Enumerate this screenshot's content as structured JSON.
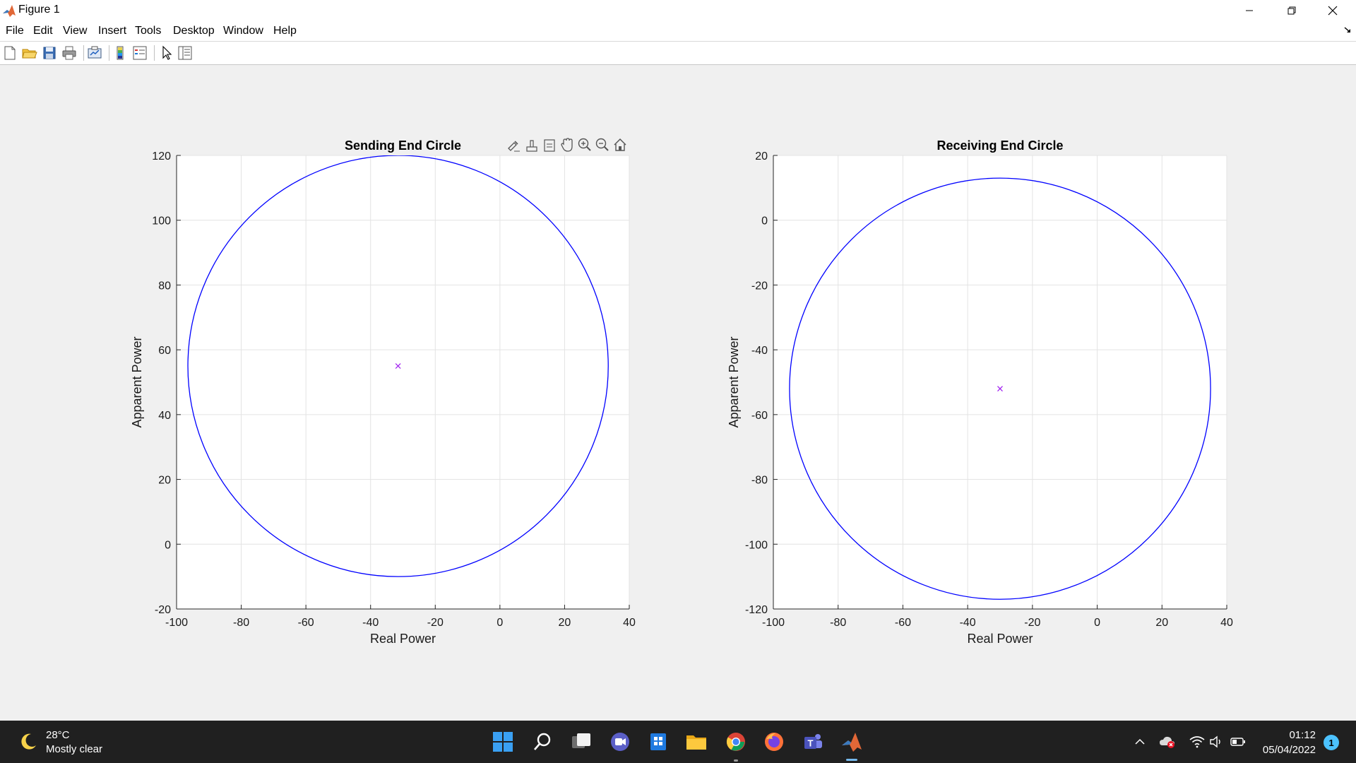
{
  "window": {
    "title": "Figure 1",
    "icon": "matlab-logo-icon",
    "controls": [
      "minimize-icon",
      "restore-icon",
      "close-icon"
    ]
  },
  "menu": {
    "items": [
      "File",
      "Edit",
      "View",
      "Insert",
      "Tools",
      "Desktop",
      "Window",
      "Help"
    ]
  },
  "toolbar": {
    "buttons": [
      "new-figure-icon",
      "open-file-icon",
      "save-icon",
      "print-icon",
      "link-plot-icon",
      "insert-colorbar-icon",
      "insert-legend-icon",
      "edit-plot-icon",
      "property-inspector-icon"
    ]
  },
  "axes_toolbar": {
    "buttons": [
      "brush-icon",
      "data-tips-icon",
      "restore-view-icon",
      "pan-icon",
      "zoom-in-icon",
      "zoom-out-icon",
      "home-icon"
    ]
  },
  "chart_data": [
    {
      "type": "line",
      "title": "Sending End Circle",
      "xlabel": "Real Power",
      "ylabel": "Apparent Power",
      "xlim": [
        -100,
        40
      ],
      "ylim": [
        -20,
        120
      ],
      "xticks": [
        -100,
        -80,
        -60,
        -40,
        -20,
        0,
        20,
        40
      ],
      "yticks": [
        -20,
        0,
        20,
        40,
        60,
        80,
        100,
        120
      ],
      "grid": true,
      "series": [
        {
          "kind": "circle",
          "center": [
            -31.5,
            55
          ],
          "radius": 65,
          "color": "#0000ff"
        },
        {
          "kind": "marker",
          "marker": "x",
          "x": -31.5,
          "y": 55,
          "color": "#a020f0"
        }
      ]
    },
    {
      "type": "line",
      "title": "Receiving End Circle",
      "xlabel": "Real Power",
      "ylabel": "Apparent Power",
      "xlim": [
        -100,
        40
      ],
      "ylim": [
        -120,
        20
      ],
      "xticks": [
        -100,
        -80,
        -60,
        -40,
        -20,
        0,
        20,
        40
      ],
      "yticks": [
        -120,
        -100,
        -80,
        -60,
        -40,
        -20,
        0,
        20
      ],
      "grid": true,
      "series": [
        {
          "kind": "circle",
          "center": [
            -30,
            -52
          ],
          "radius": 65,
          "color": "#0000ff"
        },
        {
          "kind": "marker",
          "marker": "x",
          "x": -30,
          "y": -52,
          "color": "#a020f0"
        }
      ]
    }
  ],
  "taskbar": {
    "weather": {
      "temperature": "28°C",
      "condition": "Mostly clear",
      "icon": "moon-icon"
    },
    "apps": [
      "windows-start-icon",
      "search-icon",
      "task-view-icon",
      "teams-chat-icon",
      "microsoft-store-icon",
      "file-explorer-icon",
      "chrome-icon",
      "firefox-icon",
      "teams-icon",
      "matlab-icon"
    ],
    "tray": [
      "chevron-up-icon",
      "onedrive-error-icon",
      "wifi-icon",
      "volume-icon",
      "battery-icon"
    ],
    "clock": {
      "time": "01:12",
      "date": "05/04/2022"
    },
    "notification_count": "1"
  }
}
